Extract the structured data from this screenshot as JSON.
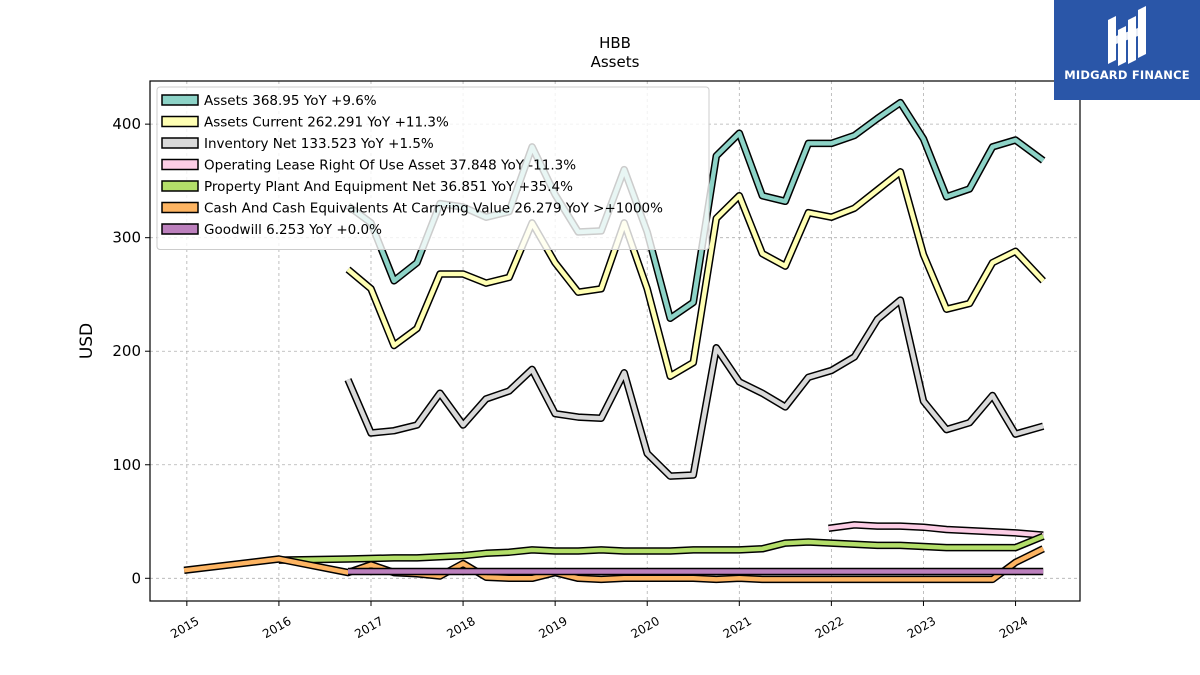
{
  "chart_data": {
    "type": "line",
    "title": "HBB",
    "subtitle": "Assets",
    "ylabel": "USD",
    "xlabel": "",
    "xlim": [
      2014.6,
      2024.7
    ],
    "ylim": [
      -20,
      438
    ],
    "yticks": [
      0,
      100,
      200,
      300,
      400
    ],
    "xticks": [
      "2015",
      "2016",
      "2017",
      "2018",
      "2019",
      "2020",
      "2021",
      "2022",
      "2023",
      "2024"
    ],
    "grid": true,
    "legend_position": "top-left",
    "series": [
      {
        "name": "Assets",
        "legend": "Assets  368.95 YoY +9.6%",
        "color": "#8dd3c7",
        "x": [
          2016.75,
          2017.0,
          2017.25,
          2017.5,
          2017.75,
          2018.0,
          2018.25,
          2018.5,
          2018.75,
          2019.0,
          2019.25,
          2019.5,
          2019.75,
          2020.0,
          2020.25,
          2020.5,
          2020.75,
          2021.0,
          2021.25,
          2021.5,
          2021.75,
          2022.0,
          2022.25,
          2022.5,
          2022.75,
          2023.0,
          2023.25,
          2023.5,
          2023.75,
          2024.0,
          2024.3
        ],
        "y": [
          328,
          313,
          262,
          278,
          330,
          327,
          318,
          323,
          380,
          338,
          305,
          306,
          360,
          305,
          229,
          243,
          372,
          392,
          337,
          332,
          383,
          383,
          390,
          405,
          419,
          387,
          336,
          343,
          380,
          386,
          368
        ]
      },
      {
        "name": "Assets Current",
        "legend": "Assets Current  262.291 YoY +11.3%",
        "color": "#ffffb3",
        "x": [
          2016.75,
          2017.0,
          2017.25,
          2017.5,
          2017.75,
          2018.0,
          2018.25,
          2018.5,
          2018.75,
          2019.0,
          2019.25,
          2019.5,
          2019.75,
          2020.0,
          2020.25,
          2020.5,
          2020.75,
          2021.0,
          2021.25,
          2021.5,
          2021.75,
          2022.0,
          2022.25,
          2022.5,
          2022.75,
          2023.0,
          2023.25,
          2023.5,
          2023.75,
          2024.0,
          2024.3
        ],
        "y": [
          272,
          255,
          205,
          220,
          268,
          268,
          260,
          265,
          313,
          278,
          252,
          255,
          313,
          255,
          178,
          190,
          317,
          337,
          286,
          275,
          322,
          318,
          326,
          342,
          358,
          285,
          237,
          242,
          278,
          288,
          262
        ]
      },
      {
        "name": "Inventory Net",
        "legend": "Inventory Net  133.523 YoY +1.5%",
        "color": "#d9d9d9",
        "x": [
          2016.75,
          2017.0,
          2017.25,
          2017.5,
          2017.75,
          2018.0,
          2018.25,
          2018.5,
          2018.75,
          2019.0,
          2019.25,
          2019.5,
          2019.75,
          2020.0,
          2020.25,
          2020.5,
          2020.75,
          2021.0,
          2021.25,
          2021.5,
          2021.75,
          2022.0,
          2022.25,
          2022.5,
          2022.75,
          2023.0,
          2023.25,
          2023.5,
          2023.75,
          2024.0,
          2024.3
        ],
        "y": [
          175,
          128,
          130,
          135,
          163,
          135,
          158,
          165,
          184,
          145,
          142,
          141,
          181,
          110,
          90,
          91,
          203,
          173,
          163,
          151,
          177,
          183,
          195,
          228,
          245,
          156,
          131,
          137,
          161,
          127,
          134
        ]
      },
      {
        "name": "Operating Lease Right Of Use Asset",
        "legend": "Operating Lease Right Of Use Asset  37.848 YoY -11.3%",
        "color": "#fccde5",
        "x": [
          2021.97,
          2022.25,
          2022.5,
          2022.75,
          2023.0,
          2023.25,
          2023.5,
          2023.75,
          2024.0,
          2024.3
        ],
        "y": [
          44,
          47,
          46,
          46,
          45,
          43,
          42,
          41,
          40,
          38
        ]
      },
      {
        "name": "Property Plant And Equipment Net",
        "legend": "Property Plant And Equipment Net  36.851 YoY +35.4%",
        "color": "#b3de69",
        "x": [
          2016.0,
          2016.75,
          2017.25,
          2017.5,
          2017.75,
          2018.0,
          2018.25,
          2018.5,
          2018.75,
          2019.0,
          2019.25,
          2019.5,
          2019.75,
          2020.0,
          2020.25,
          2020.5,
          2020.75,
          2021.0,
          2021.25,
          2021.5,
          2021.75,
          2022.0,
          2022.25,
          2022.5,
          2022.75,
          2023.0,
          2023.25,
          2023.5,
          2023.75,
          2024.0,
          2024.3
        ],
        "y": [
          16,
          17,
          18,
          18,
          19,
          20,
          22,
          23,
          25,
          24,
          24,
          25,
          24,
          24,
          24,
          25,
          25,
          25,
          26,
          31,
          32,
          31,
          30,
          29,
          29,
          28,
          27,
          27,
          27,
          27,
          37
        ]
      },
      {
        "name": "Cash And Cash Equivalents At Carrying Value",
        "legend": "Cash And Cash Equivalents At Carrying Value  26.279 YoY >+1000%",
        "color": "#fdb462",
        "x": [
          2014.97,
          2016.0,
          2016.75,
          2017.0,
          2017.25,
          2017.5,
          2017.75,
          2018.0,
          2018.25,
          2018.5,
          2018.75,
          2019.0,
          2019.25,
          2019.5,
          2019.75,
          2020.0,
          2020.25,
          2020.5,
          2020.75,
          2021.0,
          2021.25,
          2021.5,
          2021.75,
          2022.0,
          2022.25,
          2022.5,
          2022.75,
          2023.0,
          2023.25,
          2023.5,
          2023.75,
          2024.0,
          2024.3
        ],
        "y": [
          7,
          17,
          5,
          12,
          5,
          4,
          2,
          13,
          1,
          0,
          0,
          5,
          0,
          -1,
          0,
          0,
          0,
          0,
          -1,
          0,
          -1,
          -1,
          -1,
          -1,
          -1,
          -1,
          -1,
          -1,
          -1,
          -1,
          -1,
          14,
          26
        ]
      },
      {
        "name": "Goodwill",
        "legend": "Goodwill  6.253 YoY +0.0%",
        "color": "#bc80bd",
        "x": [
          2016.75,
          2024.3
        ],
        "y": [
          6,
          6
        ]
      }
    ]
  },
  "logo": {
    "text": "MIDGARD FINANCE",
    "bg_color": "#2a56a8"
  }
}
